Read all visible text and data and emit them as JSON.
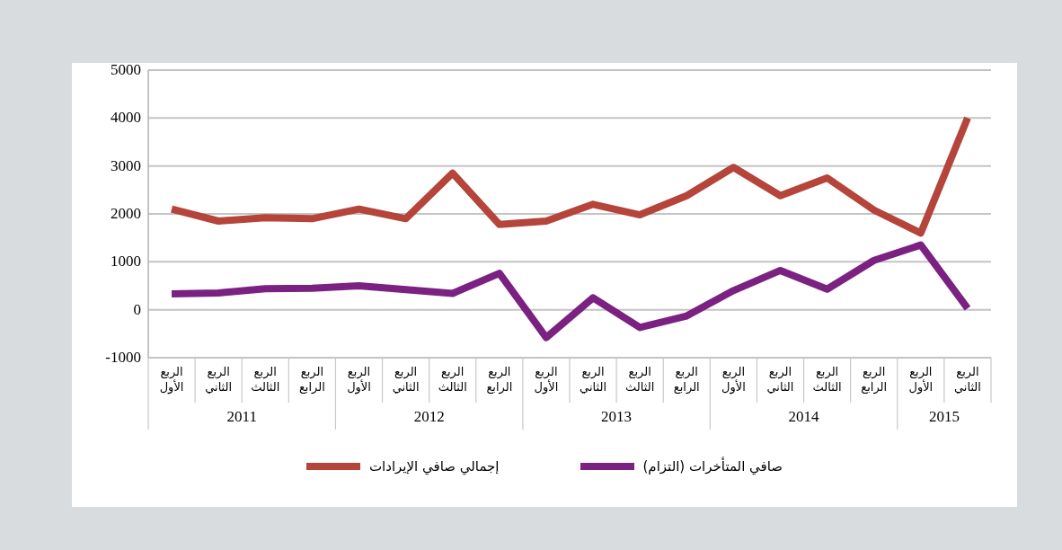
{
  "chart_data": {
    "type": "line",
    "categories": [
      "الربع الأول",
      "الربع الثاني",
      "الربع الثالث",
      "الربع الرابع",
      "الربع الأول",
      "الربع الثاني",
      "الربع الثالث",
      "الربع الرابع",
      "الربع الأول",
      "الربع الثاني",
      "الربع الثالث",
      "الربع الرابع",
      "الربع الأول",
      "الربع الثاني",
      "الربع الثالث",
      "الربع الرابع",
      "الربع الأول",
      "الربع الثاني"
    ],
    "series": [
      {
        "name": "إجمالي صافي الإيرادات",
        "color": "#b5443a",
        "values": [
          2100,
          1850,
          1920,
          1900,
          2100,
          1900,
          2850,
          1780,
          1850,
          2200,
          1980,
          2380,
          2970,
          2380,
          2750,
          2080,
          1600,
          4000
        ]
      },
      {
        "name": "صافي المتأخرات (التزام)",
        "color": "#7a2181",
        "values": [
          330,
          350,
          440,
          450,
          500,
          420,
          340,
          760,
          -580,
          250,
          -370,
          -130,
          400,
          820,
          430,
          1030,
          1350,
          30
        ]
      }
    ],
    "annotations": [
      "2011",
      "2012",
      "2013",
      "2014",
      "2015"
    ],
    "ylim": [
      -1000,
      5000
    ],
    "yticks": [
      -1000,
      0,
      1000,
      2000,
      3000,
      4000,
      5000
    ],
    "grid": "y",
    "legend": "bottom",
    "marker": "none",
    "line_style": "solid"
  }
}
